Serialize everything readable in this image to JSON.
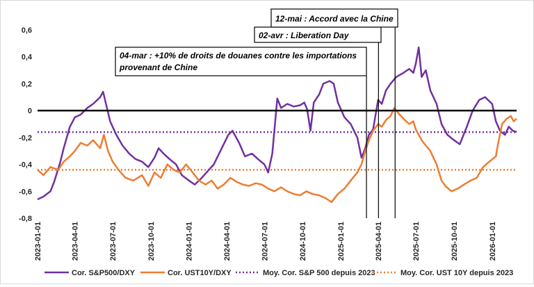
{
  "chart_data": {
    "type": "line",
    "title": "",
    "xlabel": "",
    "ylabel": "",
    "ylim": [
      -0.8,
      0.6
    ],
    "yticks": [
      0.6,
      0.4,
      0.2,
      0,
      -0.2,
      -0.4,
      -0.6,
      -0.8
    ],
    "ytick_labels": [
      "0,6",
      "0,4",
      "0,2",
      "0",
      "-0,2",
      "-0,4",
      "-0,6",
      "-0,8"
    ],
    "x_start": "2023-01-01",
    "x_end": "2026-03-01",
    "xticks": [
      "2023-01-01",
      "2023-04-01",
      "2023-07-01",
      "2023-10-01",
      "2024-01-01",
      "2024-04-01",
      "2024-07-01",
      "2024-10-01",
      "2025-01-01",
      "2025-04-01",
      "2025-07-01",
      "2025-10-01",
      "2026-01-01"
    ],
    "colors": {
      "spx": "#7030a0",
      "ust": "#ed7d31",
      "zero": "#000000",
      "vline": "#000000"
    },
    "series": [
      {
        "name": "Cor. S&P500/DXY",
        "style": "solid",
        "points": [
          [
            "2023-01-01",
            -0.66
          ],
          [
            "2023-01-15",
            -0.64
          ],
          [
            "2023-02-01",
            -0.6
          ],
          [
            "2023-02-10",
            -0.53
          ],
          [
            "2023-02-25",
            -0.38
          ],
          [
            "2023-03-05",
            -0.28
          ],
          [
            "2023-03-20",
            -0.12
          ],
          [
            "2023-04-01",
            -0.05
          ],
          [
            "2023-04-15",
            -0.03
          ],
          [
            "2023-05-01",
            0.02
          ],
          [
            "2023-05-15",
            0.05
          ],
          [
            "2023-06-01",
            0.1
          ],
          [
            "2023-06-08",
            0.14
          ],
          [
            "2023-06-15",
            0.05
          ],
          [
            "2023-06-25",
            -0.08
          ],
          [
            "2023-07-10",
            -0.18
          ],
          [
            "2023-07-25",
            -0.26
          ],
          [
            "2023-08-10",
            -0.32
          ],
          [
            "2023-08-25",
            -0.36
          ],
          [
            "2023-09-10",
            -0.38
          ],
          [
            "2023-09-25",
            -0.42
          ],
          [
            "2023-10-10",
            -0.35
          ],
          [
            "2023-10-20",
            -0.28
          ],
          [
            "2023-11-01",
            -0.32
          ],
          [
            "2023-11-15",
            -0.36
          ],
          [
            "2023-12-01",
            -0.4
          ],
          [
            "2023-12-15",
            -0.48
          ],
          [
            "2024-01-01",
            -0.52
          ],
          [
            "2024-01-15",
            -0.55
          ],
          [
            "2024-02-01",
            -0.5
          ],
          [
            "2024-02-15",
            -0.45
          ],
          [
            "2024-03-01",
            -0.4
          ],
          [
            "2024-03-20",
            -0.28
          ],
          [
            "2024-04-05",
            -0.18
          ],
          [
            "2024-04-15",
            -0.15
          ],
          [
            "2024-05-01",
            -0.24
          ],
          [
            "2024-05-15",
            -0.34
          ],
          [
            "2024-06-01",
            -0.32
          ],
          [
            "2024-06-15",
            -0.36
          ],
          [
            "2024-07-01",
            -0.4
          ],
          [
            "2024-07-10",
            -0.46
          ],
          [
            "2024-07-20",
            -0.32
          ],
          [
            "2024-08-01",
            0.09
          ],
          [
            "2024-08-10",
            0.02
          ],
          [
            "2024-08-25",
            0.05
          ],
          [
            "2024-09-10",
            0.03
          ],
          [
            "2024-09-25",
            0.04
          ],
          [
            "2024-10-05",
            0.06
          ],
          [
            "2024-10-12",
            0.01
          ],
          [
            "2024-10-20",
            -0.15
          ],
          [
            "2024-10-28",
            0.06
          ],
          [
            "2024-11-10",
            0.12
          ],
          [
            "2024-11-20",
            0.2
          ],
          [
            "2024-12-05",
            0.22
          ],
          [
            "2024-12-15",
            0.2
          ],
          [
            "2024-12-25",
            0.06
          ],
          [
            "2025-01-10",
            -0.05
          ],
          [
            "2025-01-25",
            -0.1
          ],
          [
            "2025-02-10",
            -0.2
          ],
          [
            "2025-02-20",
            -0.35
          ],
          [
            "2025-03-01",
            -0.28
          ],
          [
            "2025-03-10",
            -0.18
          ],
          [
            "2025-03-20",
            -0.14
          ],
          [
            "2025-04-01",
            0.08
          ],
          [
            "2025-04-10",
            0.05
          ],
          [
            "2025-04-20",
            0.15
          ],
          [
            "2025-05-01",
            0.2
          ],
          [
            "2025-05-15",
            0.25
          ],
          [
            "2025-06-01",
            0.28
          ],
          [
            "2025-06-15",
            0.31
          ],
          [
            "2025-06-25",
            0.28
          ],
          [
            "2025-07-01",
            0.35
          ],
          [
            "2025-07-08",
            0.47
          ],
          [
            "2025-07-15",
            0.25
          ],
          [
            "2025-07-25",
            0.3
          ],
          [
            "2025-08-05",
            0.15
          ],
          [
            "2025-08-20",
            0.05
          ],
          [
            "2025-09-01",
            -0.1
          ],
          [
            "2025-09-15",
            -0.18
          ],
          [
            "2025-10-01",
            -0.22
          ],
          [
            "2025-10-15",
            -0.25
          ],
          [
            "2025-11-01",
            -0.12
          ],
          [
            "2025-11-15",
            0.0
          ],
          [
            "2025-12-01",
            0.08
          ],
          [
            "2025-12-15",
            0.1
          ],
          [
            "2026-01-01",
            0.05
          ],
          [
            "2026-01-10",
            -0.08
          ],
          [
            "2026-01-20",
            -0.15
          ],
          [
            "2026-02-01",
            -0.18
          ],
          [
            "2026-02-10",
            -0.12
          ],
          [
            "2026-02-20",
            -0.15
          ],
          [
            "2026-03-01",
            -0.16
          ]
        ]
      },
      {
        "name": "Cor. UST10Y/DXY",
        "style": "solid",
        "points": [
          [
            "2023-01-01",
            -0.44
          ],
          [
            "2023-01-15",
            -0.48
          ],
          [
            "2023-02-01",
            -0.42
          ],
          [
            "2023-02-20",
            -0.44
          ],
          [
            "2023-03-05",
            -0.38
          ],
          [
            "2023-03-20",
            -0.34
          ],
          [
            "2023-04-01",
            -0.3
          ],
          [
            "2023-04-15",
            -0.24
          ],
          [
            "2023-05-01",
            -0.26
          ],
          [
            "2023-05-15",
            -0.22
          ],
          [
            "2023-06-01",
            -0.28
          ],
          [
            "2023-06-10",
            -0.18
          ],
          [
            "2023-06-20",
            -0.3
          ],
          [
            "2023-07-01",
            -0.38
          ],
          [
            "2023-07-15",
            -0.44
          ],
          [
            "2023-08-01",
            -0.5
          ],
          [
            "2023-08-20",
            -0.52
          ],
          [
            "2023-09-10",
            -0.48
          ],
          [
            "2023-09-25",
            -0.56
          ],
          [
            "2023-10-10",
            -0.46
          ],
          [
            "2023-10-25",
            -0.5
          ],
          [
            "2023-11-10",
            -0.4
          ],
          [
            "2023-11-25",
            -0.44
          ],
          [
            "2023-12-10",
            -0.46
          ],
          [
            "2023-12-25",
            -0.4
          ],
          [
            "2024-01-10",
            -0.46
          ],
          [
            "2024-01-25",
            -0.52
          ],
          [
            "2024-02-10",
            -0.55
          ],
          [
            "2024-02-25",
            -0.52
          ],
          [
            "2024-03-10",
            -0.58
          ],
          [
            "2024-03-25",
            -0.55
          ],
          [
            "2024-04-10",
            -0.5
          ],
          [
            "2024-04-25",
            -0.53
          ],
          [
            "2024-05-10",
            -0.55
          ],
          [
            "2024-05-25",
            -0.56
          ],
          [
            "2024-06-10",
            -0.54
          ],
          [
            "2024-06-25",
            -0.55
          ],
          [
            "2024-07-10",
            -0.58
          ],
          [
            "2024-07-25",
            -0.6
          ],
          [
            "2024-08-10",
            -0.57
          ],
          [
            "2024-08-25",
            -0.6
          ],
          [
            "2024-09-10",
            -0.62
          ],
          [
            "2024-09-25",
            -0.63
          ],
          [
            "2024-10-10",
            -0.6
          ],
          [
            "2024-10-25",
            -0.62
          ],
          [
            "2024-11-10",
            -0.63
          ],
          [
            "2024-11-25",
            -0.65
          ],
          [
            "2024-12-10",
            -0.68
          ],
          [
            "2024-12-25",
            -0.62
          ],
          [
            "2025-01-10",
            -0.58
          ],
          [
            "2025-01-25",
            -0.52
          ],
          [
            "2025-02-10",
            -0.46
          ],
          [
            "2025-02-20",
            -0.4
          ],
          [
            "2025-03-01",
            -0.3
          ],
          [
            "2025-03-10",
            -0.22
          ],
          [
            "2025-03-20",
            -0.15
          ],
          [
            "2025-04-01",
            -0.1
          ],
          [
            "2025-04-10",
            -0.12
          ],
          [
            "2025-04-20",
            -0.07
          ],
          [
            "2025-05-01",
            -0.04
          ],
          [
            "2025-05-10",
            0.02
          ],
          [
            "2025-05-20",
            -0.02
          ],
          [
            "2025-06-01",
            -0.06
          ],
          [
            "2025-06-15",
            -0.1
          ],
          [
            "2025-06-25",
            -0.08
          ],
          [
            "2025-07-01",
            -0.14
          ],
          [
            "2025-07-15",
            -0.22
          ],
          [
            "2025-07-25",
            -0.26
          ],
          [
            "2025-08-05",
            -0.3
          ],
          [
            "2025-08-20",
            -0.4
          ],
          [
            "2025-09-01",
            -0.52
          ],
          [
            "2025-09-10",
            -0.56
          ],
          [
            "2025-09-25",
            -0.6
          ],
          [
            "2025-10-10",
            -0.58
          ],
          [
            "2025-10-25",
            -0.55
          ],
          [
            "2025-11-10",
            -0.52
          ],
          [
            "2025-11-25",
            -0.5
          ],
          [
            "2025-12-10",
            -0.42
          ],
          [
            "2025-12-25",
            -0.38
          ],
          [
            "2026-01-10",
            -0.34
          ],
          [
            "2026-01-15",
            -0.25
          ],
          [
            "2026-01-25",
            -0.1
          ],
          [
            "2026-02-05",
            -0.06
          ],
          [
            "2026-02-15",
            -0.04
          ],
          [
            "2026-02-22",
            -0.08
          ],
          [
            "2026-03-01",
            -0.06
          ]
        ]
      },
      {
        "name": "Moy. Cor. S&P 500 depuis 2023",
        "style": "dotted",
        "value": -0.16
      },
      {
        "name": "Moy. Cor. UST 10Y  depuis 2023",
        "style": "dotted",
        "value": -0.44
      }
    ],
    "annotations": [
      {
        "date": "2025-03-04",
        "lines": [
          "04-mar  : +10% de droits de douanes contre les importations",
          "provenant de Chine"
        ]
      },
      {
        "date": "2025-04-02",
        "lines": [
          "02-avr : Liberation Day"
        ]
      },
      {
        "date": "2025-05-12",
        "lines": [
          "12-mai : Accord avec la Chine"
        ]
      }
    ]
  }
}
